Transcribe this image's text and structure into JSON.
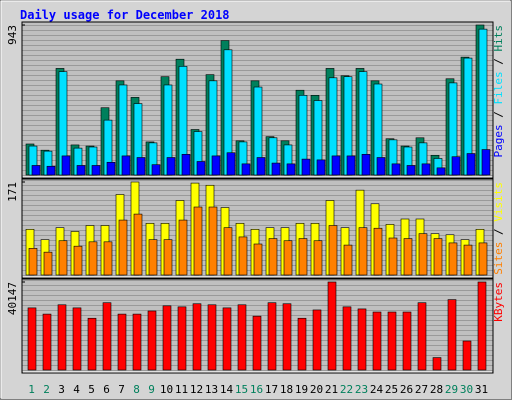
{
  "chart_data": [
    {
      "type": "bar",
      "title": "Daily usage for December 2018",
      "categories": [
        "1",
        "2",
        "3",
        "4",
        "5",
        "6",
        "7",
        "8",
        "9",
        "10",
        "11",
        "12",
        "13",
        "14",
        "15",
        "16",
        "17",
        "18",
        "19",
        "20",
        "21",
        "22",
        "23",
        "24",
        "25",
        "26",
        "27",
        "28",
        "29",
        "30",
        "31"
      ],
      "highlight": [
        0,
        1,
        7,
        8,
        14,
        15,
        21,
        22,
        28,
        29
      ],
      "highlight_color": "#00805c",
      "ylim": [
        0,
        943
      ],
      "yticks": [
        943
      ],
      "legend_separator": " / ",
      "series": [
        {
          "name": "Hits",
          "color": "#00805c",
          "values": [
            195,
            156,
            670,
            189,
            182,
            423,
            592,
            488,
            208,
            618,
            728,
            286,
            631,
            845,
            215,
            592,
            241,
            215,
            533,
            501,
            670,
            624,
            670,
            592,
            228,
            182,
            234,
            124,
            605,
            741,
            943
          ]
        },
        {
          "name": "Files",
          "color": "#00e0ff",
          "values": [
            182,
            150,
            650,
            169,
            176,
            345,
            566,
            449,
            202,
            566,
            683,
            273,
            592,
            787,
            208,
            553,
            234,
            189,
            501,
            468,
            611,
            618,
            650,
            572,
            221,
            176,
            202,
            104,
            579,
            735,
            917
          ]
        },
        {
          "name": "Pages",
          "color": "#0000ff",
          "values": [
            60,
            55,
            120,
            60,
            60,
            80,
            120,
            110,
            65,
            110,
            130,
            85,
            120,
            140,
            70,
            110,
            75,
            70,
            100,
            95,
            120,
            120,
            130,
            110,
            70,
            60,
            70,
            45,
            115,
            135,
            160
          ]
        }
      ]
    },
    {
      "type": "bar",
      "ylim": [
        0,
        171
      ],
      "yticks": [
        171
      ],
      "legend_separator": " / ",
      "series": [
        {
          "name": "Visits",
          "color": "#ffff00",
          "values": [
            84,
            65,
            87,
            80,
            91,
            91,
            148,
            171,
            95,
            95,
            137,
            169,
            165,
            124,
            95,
            84,
            87,
            87,
            95,
            95,
            137,
            87,
            156,
            131,
            93,
            103,
            103,
            76,
            74,
            65,
            84
          ]
        },
        {
          "name": "Sites",
          "color": "#ff8000",
          "values": [
            49,
            42,
            63,
            53,
            61,
            61,
            101,
            112,
            65,
            65,
            101,
            125,
            125,
            87,
            70,
            57,
            67,
            63,
            67,
            63,
            91,
            55,
            87,
            86,
            68,
            67,
            76,
            67,
            59,
            55,
            59
          ]
        }
      ]
    },
    {
      "type": "bar",
      "ylim": [
        0,
        40147
      ],
      "yticks": [
        40147
      ],
      "legend_separator": " / ",
      "series": [
        {
          "name": "KBytes",
          "color": "#ff0000",
          "values": [
            28338,
            25505,
            29756,
            28338,
            23615,
            30700,
            25505,
            25505,
            26922,
            29283,
            28811,
            30228,
            29756,
            28338,
            29756,
            24560,
            30700,
            30228,
            23615,
            27394,
            40147,
            28811,
            27866,
            26450,
            26450,
            26450,
            30700,
            5668,
            32118,
            13225,
            40147
          ]
        }
      ]
    }
  ]
}
